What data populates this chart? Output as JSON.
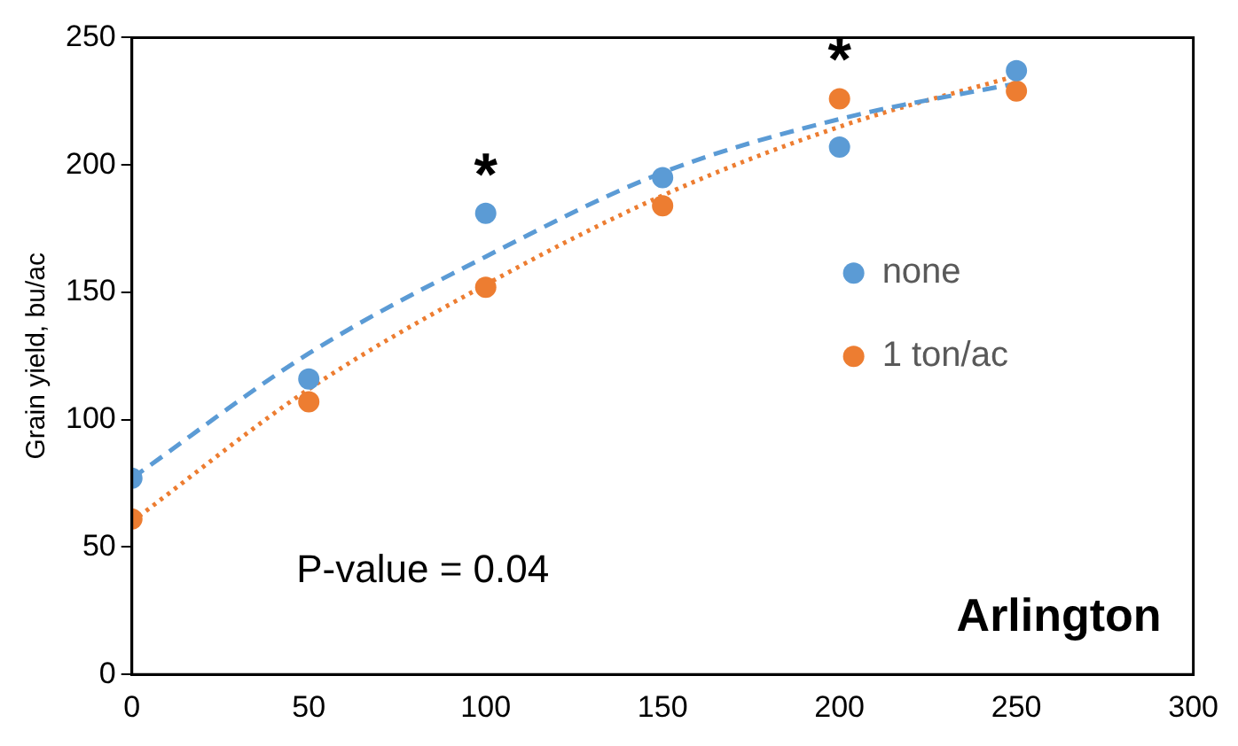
{
  "chart_data": {
    "type": "scatter",
    "ylabel": "Grain yield, bu/ac",
    "xlim": [
      0,
      300
    ],
    "xticks": [
      0,
      50,
      100,
      150,
      200,
      250,
      300
    ],
    "ylim": [
      0,
      250
    ],
    "yticks": [
      0,
      50,
      100,
      150,
      200,
      250
    ],
    "grid": false,
    "legend": "right",
    "marker": "circle",
    "series": [
      {
        "name": "none",
        "type": "scatter",
        "color": "#5b9bd5",
        "x": [
          0,
          50,
          100,
          150,
          200,
          250
        ],
        "values": [
          77,
          116,
          181,
          195,
          207,
          237
        ]
      },
      {
        "name": "1 ton/ac",
        "type": "scatter",
        "color": "#ed7d31",
        "x": [
          0,
          50,
          100,
          150,
          200,
          250
        ],
        "values": [
          61,
          107,
          152,
          184,
          226,
          229
        ]
      },
      {
        "type": "line",
        "color": "#5b9bd5",
        "line_style": "dashed",
        "marker": "none",
        "x": [
          0,
          50,
          100,
          150,
          200,
          250
        ],
        "values": [
          77,
          126,
          164,
          197,
          218,
          232
        ]
      },
      {
        "type": "line",
        "color": "#ed7d31",
        "line_style": "dotted",
        "marker": "none",
        "x": [
          0,
          50,
          100,
          150,
          200,
          250
        ],
        "values": [
          60,
          112,
          153,
          188,
          215,
          235
        ]
      }
    ],
    "annotations": [
      {
        "text": "*",
        "x": 100,
        "y": 181
      },
      {
        "text": "*",
        "x": 200,
        "y": 226
      },
      "P-value = 0.04",
      "Arlington"
    ]
  }
}
